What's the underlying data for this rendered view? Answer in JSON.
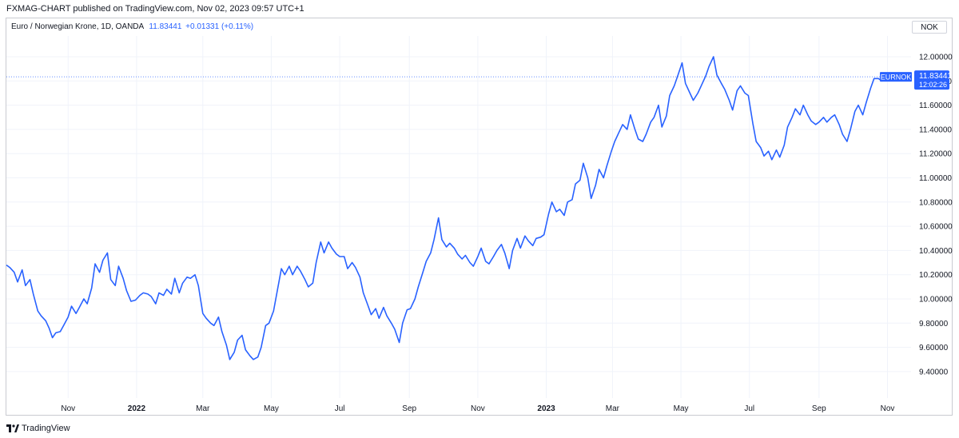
{
  "header": {
    "title": "FXMAG-CHART published on TradingView.com, Nov 02, 2023 09:57 UTC+1"
  },
  "legend": {
    "symbol": "Euro / Norwegian Krone, 1D, OANDA",
    "last": "11.83441",
    "change": "+0.01331 (+0.11%)"
  },
  "currency_button": "NOK",
  "price_tag": {
    "symbol": "EURNOK",
    "price": "11.83441",
    "countdown": "12:02:26"
  },
  "footer": {
    "brand": "TradingView",
    "logo_icon": "tradingview-logo-icon"
  },
  "colors": {
    "line": "#2962ff",
    "tag_bg": "#2962ff",
    "grid": "#f0f3fa",
    "axis_text": "#131722"
  },
  "chart_data": {
    "type": "line",
    "series_name": "EURNOK",
    "ylim": [
      9.3,
      12.1
    ],
    "y_ticks": [
      "12.00000",
      "11.80000",
      "11.60000",
      "11.40000",
      "11.20000",
      "11.00000",
      "10.80000",
      "10.60000",
      "10.40000",
      "10.20000",
      "10.00000",
      "9.80000",
      "9.60000",
      "9.40000"
    ],
    "x_ticks": [
      {
        "label": "Nov",
        "date": "2021-11-01"
      },
      {
        "label": "2022",
        "date": "2022-01-01"
      },
      {
        "label": "Mar",
        "date": "2022-03-01"
      },
      {
        "label": "May",
        "date": "2022-05-01"
      },
      {
        "label": "Jul",
        "date": "2022-07-01"
      },
      {
        "label": "Sep",
        "date": "2022-09-01"
      },
      {
        "label": "Nov",
        "date": "2022-11-01"
      },
      {
        "label": "2023",
        "date": "2023-01-01"
      },
      {
        "label": "Mar",
        "date": "2023-03-01"
      },
      {
        "label": "May",
        "date": "2023-05-01"
      },
      {
        "label": "Jul",
        "date": "2023-07-01"
      },
      {
        "label": "Sep",
        "date": "2023-09-01"
      },
      {
        "label": "Nov",
        "date": "2023-11-01"
      }
    ],
    "xlim": [
      "2021-09-07",
      "2023-11-22"
    ],
    "bold_ticks": [
      "2022",
      "2023"
    ],
    "last_value": 11.83441,
    "points": [
      [
        "2021-09-07",
        10.28
      ],
      [
        "2021-09-10",
        10.26
      ],
      [
        "2021-09-14",
        10.22
      ],
      [
        "2021-09-17",
        10.14
      ],
      [
        "2021-09-21",
        10.24
      ],
      [
        "2021-09-24",
        10.11
      ],
      [
        "2021-09-28",
        10.16
      ],
      [
        "2021-10-01",
        10.04
      ],
      [
        "2021-10-05",
        9.9
      ],
      [
        "2021-10-08",
        9.86
      ],
      [
        "2021-10-12",
        9.82
      ],
      [
        "2021-10-15",
        9.76
      ],
      [
        "2021-10-18",
        9.68
      ],
      [
        "2021-10-21",
        9.72
      ],
      [
        "2021-10-25",
        9.73
      ],
      [
        "2021-10-28",
        9.78
      ],
      [
        "2021-11-01",
        9.85
      ],
      [
        "2021-11-04",
        9.94
      ],
      [
        "2021-11-08",
        9.88
      ],
      [
        "2021-11-11",
        9.93
      ],
      [
        "2021-11-15",
        10.0
      ],
      [
        "2021-11-18",
        9.96
      ],
      [
        "2021-11-22",
        10.09
      ],
      [
        "2021-11-25",
        10.29
      ],
      [
        "2021-11-29",
        10.22
      ],
      [
        "2021-12-02",
        10.32
      ],
      [
        "2021-12-06",
        10.38
      ],
      [
        "2021-12-09",
        10.16
      ],
      [
        "2021-12-13",
        10.11
      ],
      [
        "2021-12-16",
        10.27
      ],
      [
        "2021-12-20",
        10.17
      ],
      [
        "2021-12-23",
        10.07
      ],
      [
        "2021-12-27",
        9.98
      ],
      [
        "2021-12-31",
        9.99
      ],
      [
        "2022-01-04",
        10.03
      ],
      [
        "2022-01-07",
        10.05
      ],
      [
        "2022-01-11",
        10.04
      ],
      [
        "2022-01-14",
        10.02
      ],
      [
        "2022-01-18",
        9.96
      ],
      [
        "2022-01-21",
        10.05
      ],
      [
        "2022-01-25",
        10.03
      ],
      [
        "2022-01-28",
        10.08
      ],
      [
        "2022-02-01",
        10.04
      ],
      [
        "2022-02-04",
        10.17
      ],
      [
        "2022-02-08",
        10.05
      ],
      [
        "2022-02-11",
        10.13
      ],
      [
        "2022-02-15",
        10.18
      ],
      [
        "2022-02-18",
        10.17
      ],
      [
        "2022-02-22",
        10.2
      ],
      [
        "2022-02-25",
        10.11
      ],
      [
        "2022-03-01",
        9.88
      ],
      [
        "2022-03-04",
        9.84
      ],
      [
        "2022-03-08",
        9.8
      ],
      [
        "2022-03-11",
        9.78
      ],
      [
        "2022-03-15",
        9.85
      ],
      [
        "2022-03-18",
        9.73
      ],
      [
        "2022-03-22",
        9.62
      ],
      [
        "2022-03-25",
        9.5
      ],
      [
        "2022-03-29",
        9.56
      ],
      [
        "2022-04-01",
        9.66
      ],
      [
        "2022-04-05",
        9.7
      ],
      [
        "2022-04-08",
        9.58
      ],
      [
        "2022-04-12",
        9.53
      ],
      [
        "2022-04-15",
        9.5
      ],
      [
        "2022-04-19",
        9.52
      ],
      [
        "2022-04-22",
        9.6
      ],
      [
        "2022-04-26",
        9.78
      ],
      [
        "2022-04-29",
        9.8
      ],
      [
        "2022-05-03",
        9.9
      ],
      [
        "2022-05-06",
        10.05
      ],
      [
        "2022-05-10",
        10.25
      ],
      [
        "2022-05-13",
        10.2
      ],
      [
        "2022-05-17",
        10.27
      ],
      [
        "2022-05-20",
        10.2
      ],
      [
        "2022-05-24",
        10.27
      ],
      [
        "2022-05-27",
        10.23
      ],
      [
        "2022-05-31",
        10.16
      ],
      [
        "2022-06-03",
        10.1
      ],
      [
        "2022-06-07",
        10.13
      ],
      [
        "2022-06-10",
        10.3
      ],
      [
        "2022-06-14",
        10.47
      ],
      [
        "2022-06-17",
        10.38
      ],
      [
        "2022-06-21",
        10.47
      ],
      [
        "2022-06-24",
        10.42
      ],
      [
        "2022-06-28",
        10.37
      ],
      [
        "2022-07-01",
        10.35
      ],
      [
        "2022-07-05",
        10.35
      ],
      [
        "2022-07-08",
        10.25
      ],
      [
        "2022-07-12",
        10.3
      ],
      [
        "2022-07-15",
        10.26
      ],
      [
        "2022-07-19",
        10.18
      ],
      [
        "2022-07-22",
        10.05
      ],
      [
        "2022-07-26",
        9.95
      ],
      [
        "2022-07-29",
        9.87
      ],
      [
        "2022-08-02",
        9.92
      ],
      [
        "2022-08-05",
        9.84
      ],
      [
        "2022-08-09",
        9.93
      ],
      [
        "2022-08-12",
        9.86
      ],
      [
        "2022-08-16",
        9.8
      ],
      [
        "2022-08-19",
        9.75
      ],
      [
        "2022-08-23",
        9.64
      ],
      [
        "2022-08-26",
        9.8
      ],
      [
        "2022-08-30",
        9.91
      ],
      [
        "2022-09-02",
        9.92
      ],
      [
        "2022-09-06",
        10.0
      ],
      [
        "2022-09-09",
        10.1
      ],
      [
        "2022-09-13",
        10.22
      ],
      [
        "2022-09-16",
        10.31
      ],
      [
        "2022-09-20",
        10.38
      ],
      [
        "2022-09-23",
        10.49
      ],
      [
        "2022-09-27",
        10.67
      ],
      [
        "2022-09-30",
        10.49
      ],
      [
        "2022-10-04",
        10.43
      ],
      [
        "2022-10-07",
        10.46
      ],
      [
        "2022-10-11",
        10.42
      ],
      [
        "2022-10-14",
        10.37
      ],
      [
        "2022-10-18",
        10.33
      ],
      [
        "2022-10-21",
        10.36
      ],
      [
        "2022-10-25",
        10.3
      ],
      [
        "2022-10-28",
        10.27
      ],
      [
        "2022-11-01",
        10.35
      ],
      [
        "2022-11-04",
        10.42
      ],
      [
        "2022-11-08",
        10.31
      ],
      [
        "2022-11-11",
        10.29
      ],
      [
        "2022-11-15",
        10.35
      ],
      [
        "2022-11-18",
        10.4
      ],
      [
        "2022-11-22",
        10.45
      ],
      [
        "2022-11-25",
        10.38
      ],
      [
        "2022-11-29",
        10.25
      ],
      [
        "2022-12-02",
        10.4
      ],
      [
        "2022-12-06",
        10.5
      ],
      [
        "2022-12-09",
        10.42
      ],
      [
        "2022-12-13",
        10.52
      ],
      [
        "2022-12-16",
        10.48
      ],
      [
        "2022-12-20",
        10.44
      ],
      [
        "2022-12-23",
        10.5
      ],
      [
        "2022-12-27",
        10.51
      ],
      [
        "2022-12-30",
        10.53
      ],
      [
        "2023-01-03",
        10.7
      ],
      [
        "2023-01-06",
        10.8
      ],
      [
        "2023-01-10",
        10.72
      ],
      [
        "2023-01-13",
        10.74
      ],
      [
        "2023-01-17",
        10.69
      ],
      [
        "2023-01-20",
        10.8
      ],
      [
        "2023-01-24",
        10.82
      ],
      [
        "2023-01-27",
        10.95
      ],
      [
        "2023-01-31",
        10.98
      ],
      [
        "2023-02-03",
        11.12
      ],
      [
        "2023-02-07",
        11.0
      ],
      [
        "2023-02-10",
        10.83
      ],
      [
        "2023-02-14",
        10.94
      ],
      [
        "2023-02-17",
        11.07
      ],
      [
        "2023-02-21",
        11.0
      ],
      [
        "2023-02-24",
        11.1
      ],
      [
        "2023-02-28",
        11.22
      ],
      [
        "2023-03-03",
        11.3
      ],
      [
        "2023-03-07",
        11.38
      ],
      [
        "2023-03-10",
        11.44
      ],
      [
        "2023-03-14",
        11.4
      ],
      [
        "2023-03-17",
        11.52
      ],
      [
        "2023-03-21",
        11.4
      ],
      [
        "2023-03-24",
        11.32
      ],
      [
        "2023-03-28",
        11.3
      ],
      [
        "2023-03-31",
        11.36
      ],
      [
        "2023-04-04",
        11.46
      ],
      [
        "2023-04-07",
        11.5
      ],
      [
        "2023-04-11",
        11.6
      ],
      [
        "2023-04-14",
        11.42
      ],
      [
        "2023-04-18",
        11.51
      ],
      [
        "2023-04-21",
        11.68
      ],
      [
        "2023-04-25",
        11.76
      ],
      [
        "2023-04-28",
        11.84
      ],
      [
        "2023-05-02",
        11.95
      ],
      [
        "2023-05-05",
        11.78
      ],
      [
        "2023-05-09",
        11.7
      ],
      [
        "2023-05-12",
        11.64
      ],
      [
        "2023-05-16",
        11.7
      ],
      [
        "2023-05-19",
        11.76
      ],
      [
        "2023-05-23",
        11.84
      ],
      [
        "2023-05-26",
        11.92
      ],
      [
        "2023-05-30",
        12.0
      ],
      [
        "2023-06-02",
        11.85
      ],
      [
        "2023-06-06",
        11.78
      ],
      [
        "2023-06-09",
        11.73
      ],
      [
        "2023-06-13",
        11.64
      ],
      [
        "2023-06-16",
        11.56
      ],
      [
        "2023-06-20",
        11.72
      ],
      [
        "2023-06-23",
        11.76
      ],
      [
        "2023-06-27",
        11.7
      ],
      [
        "2023-06-30",
        11.68
      ],
      [
        "2023-07-04",
        11.45
      ],
      [
        "2023-07-07",
        11.3
      ],
      [
        "2023-07-11",
        11.25
      ],
      [
        "2023-07-14",
        11.18
      ],
      [
        "2023-07-18",
        11.22
      ],
      [
        "2023-07-21",
        11.15
      ],
      [
        "2023-07-25",
        11.23
      ],
      [
        "2023-07-28",
        11.17
      ],
      [
        "2023-08-01",
        11.27
      ],
      [
        "2023-08-04",
        11.42
      ],
      [
        "2023-08-08",
        11.5
      ],
      [
        "2023-08-11",
        11.57
      ],
      [
        "2023-08-15",
        11.52
      ],
      [
        "2023-08-18",
        11.6
      ],
      [
        "2023-08-22",
        11.52
      ],
      [
        "2023-08-25",
        11.47
      ],
      [
        "2023-08-29",
        11.44
      ],
      [
        "2023-09-01",
        11.46
      ],
      [
        "2023-09-05",
        11.5
      ],
      [
        "2023-09-08",
        11.46
      ],
      [
        "2023-09-12",
        11.5
      ],
      [
        "2023-09-15",
        11.52
      ],
      [
        "2023-09-19",
        11.44
      ],
      [
        "2023-09-22",
        11.36
      ],
      [
        "2023-09-26",
        11.3
      ],
      [
        "2023-09-29",
        11.4
      ],
      [
        "2023-10-03",
        11.55
      ],
      [
        "2023-10-06",
        11.6
      ],
      [
        "2023-10-10",
        11.52
      ],
      [
        "2023-10-13",
        11.62
      ],
      [
        "2023-10-17",
        11.74
      ],
      [
        "2023-10-20",
        11.82
      ],
      [
        "2023-10-24",
        11.82
      ],
      [
        "2023-10-27",
        11.8
      ],
      [
        "2023-10-31",
        11.81
      ],
      [
        "2023-11-02",
        11.83441
      ]
    ]
  }
}
